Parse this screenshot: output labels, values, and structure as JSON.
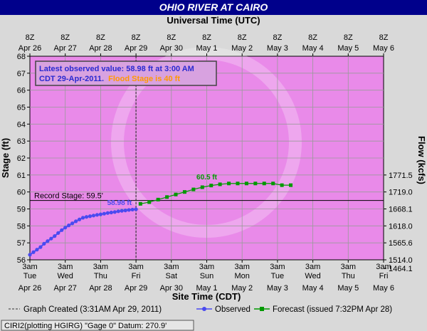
{
  "title": "OHIO RIVER AT CAIRO",
  "top_axis_title": "Universal Time (UTC)",
  "bottom_axis_title": "Site Time (CDT)",
  "left_axis_title": "Stage (ft)",
  "right_axis_title": "Flow (kcfs)",
  "info_box": {
    "line1": "Latest observed value: 58.98 ft at 3:00 AM",
    "line2_prefix": "CDT 29-Apr-2011.",
    "line2_flood": "Flood Stage is 40 ft"
  },
  "record_stage_label": "Record Stage: 59.5'",
  "legend": {
    "graph_created": "Graph Created (3:31AM Apr 29, 2011)",
    "observed": "Observed",
    "forecast": "Forecast (issued 7:32PM Apr 28)"
  },
  "footer": "CIRI2(plotting HGIRG) \"Gage 0\" Datum: 270.9'",
  "colors": {
    "plot_bg": "#e98ae9",
    "frame_bg": "#d9d9d9",
    "title_bg": "#00008b",
    "observed": "#4a4af0",
    "forecast": "#009900",
    "flood_text": "#ff9900"
  },
  "chart_data": {
    "type": "line",
    "x_unit": "days from Apr 26 3am CDT",
    "xlim": [
      0,
      10
    ],
    "ylim": [
      56,
      68
    ],
    "y_ticks": [
      56,
      57,
      58,
      59,
      60,
      61,
      62,
      63,
      64,
      65,
      66,
      67,
      68
    ],
    "bottom_ticks": [
      {
        "time": "3am",
        "day": "Tue",
        "date": "Apr 26"
      },
      {
        "time": "3am",
        "day": "Wed",
        "date": "Apr 27"
      },
      {
        "time": "3am",
        "day": "Thu",
        "date": "Apr 28"
      },
      {
        "time": "3am",
        "day": "Fri",
        "date": "Apr 29"
      },
      {
        "time": "3am",
        "day": "Sat",
        "date": "Apr 30"
      },
      {
        "time": "3am",
        "day": "Sun",
        "date": "May 1"
      },
      {
        "time": "3am",
        "day": "Mon",
        "date": "May 2"
      },
      {
        "time": "3am",
        "day": "Tue",
        "date": "May 3"
      },
      {
        "time": "3am",
        "day": "Wed",
        "date": "May 4"
      },
      {
        "time": "3am",
        "day": "Thu",
        "date": "May 5"
      },
      {
        "time": "3am",
        "day": "Fri",
        "date": "May 6"
      }
    ],
    "top_ticks": [
      {
        "time": "8Z",
        "date": "Apr 26"
      },
      {
        "time": "8Z",
        "date": "Apr 27"
      },
      {
        "time": "8Z",
        "date": "Apr 28"
      },
      {
        "time": "8Z",
        "date": "Apr 29"
      },
      {
        "time": "8Z",
        "date": "Apr 30"
      },
      {
        "time": "8Z",
        "date": "May 1"
      },
      {
        "time": "8Z",
        "date": "May 2"
      },
      {
        "time": "8Z",
        "date": "May 3"
      },
      {
        "time": "8Z",
        "date": "May 4"
      },
      {
        "time": "8Z",
        "date": "May 5"
      },
      {
        "time": "8Z",
        "date": "May 6"
      }
    ],
    "flow_ticks": [
      {
        "stage": 61,
        "label": "1771.5"
      },
      {
        "stage": 60,
        "label": "1719.0"
      },
      {
        "stage": 59,
        "label": "1668.1"
      },
      {
        "stage": 58,
        "label": "1618.0"
      },
      {
        "stage": 57,
        "label": "1565.6"
      },
      {
        "stage": 56,
        "label": "1514.0"
      },
      {
        "stage": 55.5,
        "label": "1464.1"
      }
    ],
    "record_stage": 59.5,
    "graph_created_x": 3.0,
    "observed": {
      "name": "Observed",
      "peak_label": "58.98 ft",
      "x": [
        0.0,
        0.1,
        0.2,
        0.3,
        0.4,
        0.5,
        0.6,
        0.7,
        0.8,
        0.9,
        1.0,
        1.1,
        1.2,
        1.3,
        1.4,
        1.5,
        1.6,
        1.7,
        1.8,
        1.9,
        2.0,
        2.1,
        2.2,
        2.3,
        2.4,
        2.5,
        2.6,
        2.7,
        2.8,
        2.9,
        3.0
      ],
      "y": [
        56.3,
        56.45,
        56.6,
        56.75,
        56.95,
        57.1,
        57.25,
        57.4,
        57.58,
        57.75,
        57.9,
        58.03,
        58.15,
        58.27,
        58.38,
        58.48,
        58.53,
        58.57,
        58.61,
        58.65,
        58.68,
        58.72,
        58.76,
        58.79,
        58.82,
        58.86,
        58.89,
        58.91,
        58.94,
        58.96,
        58.98
      ]
    },
    "forecast": {
      "name": "Forecast",
      "peak_label": "60.5 ft",
      "x": [
        3.125,
        3.375,
        3.625,
        3.875,
        4.125,
        4.375,
        4.625,
        4.875,
        5.125,
        5.375,
        5.625,
        5.875,
        6.125,
        6.375,
        6.625,
        6.875,
        7.125,
        7.375
      ],
      "y": [
        59.3,
        59.4,
        59.55,
        59.7,
        59.85,
        60.0,
        60.15,
        60.28,
        60.38,
        60.45,
        60.5,
        60.5,
        60.5,
        60.5,
        60.5,
        60.5,
        60.4,
        60.4
      ]
    }
  }
}
